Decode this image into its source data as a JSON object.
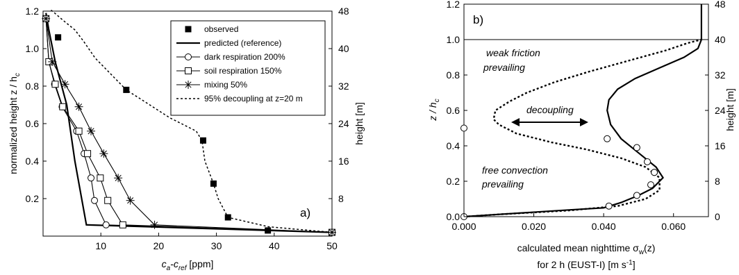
{
  "chart_data": [
    {
      "type": "line",
      "panel_label": "a)",
      "xlabel": {
        "main": "c",
        "sub1": "a",
        "mid": "-c",
        "sub2": "ref",
        "unit": " [ppm]"
      },
      "ylabel": {
        "main": "normalized height z / h",
        "sub": "c"
      },
      "y2label": "height [m]",
      "xlim": [
        0,
        50
      ],
      "ylim": [
        0,
        1.2
      ],
      "xticks": [
        "10",
        "20",
        "30",
        "40",
        "50"
      ],
      "yticks": [
        "0.2",
        "0.4",
        "0.6",
        "0.8",
        "1.0",
        "1.2"
      ],
      "y2ticks": [
        "8",
        "16",
        "24",
        "32",
        "40",
        "48"
      ],
      "legend_position": "top-right",
      "legend": [
        "observed",
        "predicted (reference)",
        "dark respiration 200%",
        "soil respiration 150%",
        "mixing 50%",
        "95% decoupling at z=20 m"
      ],
      "series": [
        {
          "name": "observed",
          "marker": "square-filled",
          "line": "none",
          "x": [
            38.9,
            32.0,
            29.5,
            27.7,
            14.4,
            2.6,
            0.5
          ],
          "y": [
            0.03,
            0.1,
            0.28,
            0.51,
            0.78,
            1.06,
            1.16
          ]
        },
        {
          "name": "predicted (reference)",
          "marker": "none",
          "line": "solid-thick",
          "x": [
            50,
            7.5,
            5.5,
            4.1,
            2.1,
            1.0,
            0.5
          ],
          "y": [
            0.02,
            0.06,
            0.4,
            0.7,
            0.93,
            1.1,
            1.19
          ]
        },
        {
          "name": "dark respiration 200%",
          "marker": "circle",
          "line": "solid",
          "x": [
            50,
            10.9,
            8.9,
            8.3,
            7.1,
            5.8,
            3.3,
            2.0,
            1.0,
            0.5
          ],
          "y": [
            0.02,
            0.06,
            0.19,
            0.31,
            0.44,
            0.56,
            0.69,
            0.81,
            0.93,
            1.16
          ]
        },
        {
          "name": "soil respiration 150%",
          "marker": "square",
          "line": "solid",
          "x": [
            50,
            13.8,
            11.2,
            9.9,
            7.7,
            6.2,
            3.4,
            2.1,
            1.0,
            0.5
          ],
          "y": [
            0.02,
            0.06,
            0.19,
            0.31,
            0.44,
            0.56,
            0.69,
            0.81,
            0.93,
            1.16
          ]
        },
        {
          "name": "mixing 50%",
          "marker": "asterisk",
          "line": "solid",
          "x": [
            50,
            19.3,
            15.1,
            13.0,
            10.5,
            8.3,
            6.2,
            3.8,
            1.6,
            0.5
          ],
          "y": [
            0.02,
            0.06,
            0.19,
            0.31,
            0.44,
            0.56,
            0.69,
            0.81,
            0.93,
            1.16
          ]
        },
        {
          "name": "95% decoupling at z=20 m",
          "marker": "none",
          "line": "dotted",
          "x": [
            50,
            39.0,
            32.0,
            30.3,
            29.5,
            28.0,
            27.5,
            26.5,
            22.0,
            14.4,
            9.0,
            7.0,
            5.5,
            3.5,
            2.0,
            1.2
          ],
          "y": [
            0.02,
            0.05,
            0.1,
            0.2,
            0.28,
            0.4,
            0.51,
            0.56,
            0.63,
            0.78,
            0.95,
            1.04,
            1.1,
            1.15,
            1.19,
            1.21
          ]
        }
      ]
    },
    {
      "type": "line",
      "panel_label": "b)",
      "xlabel_line1": {
        "main": "calculated mean nighttime σ",
        "sub": "w",
        "tail": "(z)"
      },
      "xlabel_line2": {
        "main": "for 2 h (EUST-I)  [m s",
        "sup": "-1",
        "tail": "]"
      },
      "ylabel": {
        "main": "z / h",
        "sub": "c"
      },
      "y2label": "height [m]",
      "xlim": [
        0,
        0.07
      ],
      "ylim": [
        0,
        1.2
      ],
      "xticks": [
        "0.000",
        "0.020",
        "0.040",
        "0.060"
      ],
      "yticks": [
        "0.0",
        "0.2",
        "0.4",
        "0.6",
        "0.8",
        "1.0",
        "1.2"
      ],
      "y2ticks": [
        "0",
        "8",
        "16",
        "24",
        "32",
        "40",
        "48"
      ],
      "annotations": [
        "weak friction",
        "prevailing",
        "decoupling",
        "free convection",
        "prevailing"
      ],
      "series": [
        {
          "name": "",
          "marker": "none",
          "line": "solid-thick",
          "x": [
            0.0,
            0.01,
            0.03,
            0.04,
            0.045,
            0.05,
            0.054,
            0.056,
            0.057,
            0.055,
            0.05,
            0.045,
            0.042,
            0.041,
            0.0415,
            0.044,
            0.049,
            0.056,
            0.063,
            0.067,
            0.068,
            0.068,
            0.068
          ],
          "y": [
            0.0,
            0.013,
            0.038,
            0.05,
            0.08,
            0.12,
            0.16,
            0.2,
            0.22,
            0.28,
            0.36,
            0.44,
            0.52,
            0.6,
            0.66,
            0.72,
            0.78,
            0.84,
            0.9,
            0.95,
            1.0,
            1.1,
            1.2
          ]
        },
        {
          "name": "",
          "marker": "none",
          "line": "dotted-thick",
          "x": [
            0.0,
            0.01,
            0.03,
            0.044,
            0.052,
            0.056,
            0.056,
            0.052,
            0.045,
            0.035,
            0.025,
            0.015,
            0.01,
            0.0085,
            0.009,
            0.013,
            0.018,
            0.026,
            0.036,
            0.047,
            0.058,
            0.064,
            0.068
          ],
          "y": [
            0.0,
            0.013,
            0.035,
            0.06,
            0.1,
            0.15,
            0.22,
            0.28,
            0.33,
            0.38,
            0.42,
            0.47,
            0.52,
            0.55,
            0.6,
            0.65,
            0.7,
            0.76,
            0.82,
            0.88,
            0.94,
            0.98,
            1.0
          ]
        },
        {
          "name": "",
          "marker": "circle",
          "line": "none",
          "x": [
            0.0,
            0.0,
            0.0415,
            0.041,
            0.0495,
            0.0495,
            0.0525,
            0.0545,
            0.0535,
            0.0545
          ],
          "y": [
            0.0,
            0.5,
            0.06,
            0.44,
            0.12,
            0.39,
            0.31,
            0.25,
            0.18,
            0.25
          ]
        }
      ]
    }
  ]
}
